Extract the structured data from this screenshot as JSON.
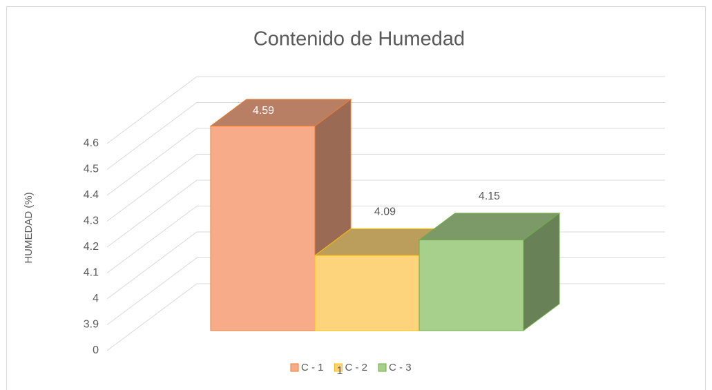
{
  "chart_data": {
    "type": "bar3d",
    "title": "Contenido de Humedad",
    "y_label": "HUMEDAD (%)",
    "categories": [
      "1"
    ],
    "series": [
      {
        "name": "C - 1",
        "color": "#f8ab88",
        "values": [
          4.59
        ]
      },
      {
        "name": "C - 2",
        "color": "#fdd47c",
        "values": [
          4.09
        ]
      },
      {
        "name": "C - 3",
        "color": "#a8d08d",
        "values": [
          4.15
        ]
      }
    ],
    "ylim": [
      0,
      4.6
    ],
    "yticks": [
      0,
      3.9,
      4,
      4.1,
      4.2,
      4.3,
      4.4,
      4.5,
      4.6
    ],
    "grid": true,
    "legend": "bottom"
  }
}
